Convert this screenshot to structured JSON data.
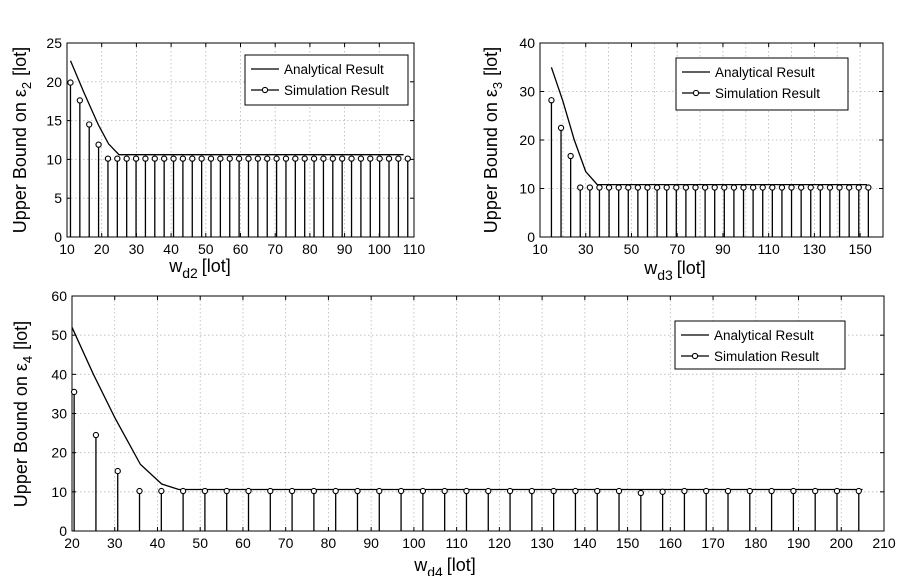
{
  "chart_data": [
    {
      "type": "line",
      "xlabel": "w",
      "xlabel_sub": "d2",
      "xlabel_unit": "[lot]",
      "ylabel": "Upper Bound on ε",
      "ylabel_sub": "2",
      "ylabel_unit": "[lot]",
      "xlim": [
        10,
        110
      ],
      "ylim": [
        0,
        25
      ],
      "xticks": [
        10,
        20,
        30,
        40,
        50,
        60,
        70,
        80,
        90,
        100,
        110
      ],
      "yticks": [
        0,
        5,
        10,
        15,
        20,
        25
      ],
      "grid": true,
      "legend_position": "top-right",
      "series": [
        {
          "name": "Analytical Result",
          "style": "line",
          "x": [
            11,
            15,
            19,
            22,
            25,
            107
          ],
          "y": [
            22.7,
            18.5,
            14.5,
            12.0,
            10.6,
            10.6
          ]
        },
        {
          "name": "Simulation Result",
          "style": "stem",
          "x": [
            11,
            13.7,
            16.4,
            19.1,
            21.8,
            24.5,
            27.2,
            29.9,
            32.6,
            35.3,
            38,
            40.7,
            43.4,
            46.1,
            48.8,
            51.5,
            54.2,
            56.9,
            59.6,
            62.3,
            65,
            67.7,
            70.4,
            73.1,
            75.8,
            78.5,
            81.2,
            83.9,
            86.6,
            89.3,
            92,
            94.7,
            97.4,
            100.1,
            102.8,
            105.5,
            108.2
          ],
          "y": [
            19.9,
            17.6,
            14.5,
            11.9,
            10.1,
            10.1,
            10.1,
            10.1,
            10.1,
            10.1,
            10.1,
            10.1,
            10.1,
            10.1,
            10.1,
            10.1,
            10.1,
            10.1,
            10.1,
            10.1,
            10.1,
            10.1,
            10.1,
            10.1,
            10.1,
            10.1,
            10.1,
            10.1,
            10.1,
            10.1,
            10.1,
            10.1,
            10.1,
            10.1,
            10.1,
            10.1,
            10.1
          ]
        }
      ]
    },
    {
      "type": "line",
      "xlabel": "w",
      "xlabel_sub": "d3",
      "xlabel_unit": "[lot]",
      "ylabel": "Upper Bound on ε",
      "ylabel_sub": "3",
      "ylabel_unit": "[lot]",
      "xlim": [
        10,
        160
      ],
      "ylim": [
        0,
        40
      ],
      "xticks": [
        10,
        30,
        50,
        70,
        90,
        110,
        130,
        150
      ],
      "xticks_minor": [
        20,
        40,
        60,
        80,
        100,
        120,
        140,
        160
      ],
      "yticks": [
        0,
        10,
        20,
        30,
        40
      ],
      "grid": true,
      "legend_position": "top-right",
      "series": [
        {
          "name": "Analytical Result",
          "style": "line",
          "x": [
            15,
            20,
            25,
            30,
            35,
            153
          ],
          "y": [
            35,
            28,
            20,
            13.5,
            10.8,
            10.8
          ]
        },
        {
          "name": "Simulation Result",
          "style": "stem",
          "x": [
            15,
            19.2,
            23.4,
            27.6,
            31.8,
            36,
            40.2,
            44.4,
            48.6,
            52.8,
            57,
            61.2,
            65.4,
            69.6,
            73.8,
            78,
            82.2,
            86.4,
            90.6,
            94.8,
            99,
            103.2,
            107.4,
            111.6,
            115.8,
            120,
            124.2,
            128.4,
            132.6,
            136.8,
            141,
            145.2,
            149.4,
            153.6
          ],
          "y": [
            28.2,
            22.5,
            16.7,
            10.2,
            10.2,
            10.2,
            10.2,
            10.2,
            10.2,
            10.2,
            10.2,
            10.2,
            10.2,
            10.2,
            10.2,
            10.2,
            10.2,
            10.2,
            10.2,
            10.2,
            10.2,
            10.2,
            10.2,
            10.2,
            10.2,
            10.2,
            10.2,
            10.2,
            10.2,
            10.2,
            10.2,
            10.2,
            10.2,
            10.2
          ]
        }
      ]
    },
    {
      "type": "line",
      "xlabel": "w",
      "xlabel_sub": "d4",
      "xlabel_unit": "[lot]",
      "ylabel": "Upper Bound on ε",
      "ylabel_sub": "4",
      "ylabel_unit": "[lot]",
      "xlim": [
        20,
        210
      ],
      "ylim": [
        0,
        60
      ],
      "xticks": [
        20,
        30,
        40,
        50,
        60,
        70,
        80,
        90,
        100,
        110,
        120,
        130,
        140,
        150,
        160,
        170,
        180,
        190,
        200,
        210
      ],
      "yticks": [
        0,
        10,
        20,
        30,
        40,
        50,
        60
      ],
      "grid": true,
      "legend_position": "top-right",
      "series": [
        {
          "name": "Analytical Result",
          "style": "line",
          "x": [
            20,
            25,
            30,
            36,
            41,
            45,
            205
          ],
          "y": [
            52,
            40,
            29,
            17,
            12,
            10.6,
            10.6
          ]
        },
        {
          "name": "Simulation Result",
          "style": "stem",
          "x": [
            20.5,
            25.6,
            30.7,
            35.8,
            40.9,
            46,
            51.1,
            56.2,
            61.3,
            66.4,
            71.5,
            76.6,
            81.7,
            86.8,
            91.9,
            97,
            102.1,
            107.2,
            112.3,
            117.4,
            122.5,
            127.6,
            132.7,
            137.8,
            142.9,
            148,
            153.1,
            158.2,
            163.3,
            168.4,
            173.5,
            178.6,
            183.7,
            188.8,
            193.9,
            199,
            204.1
          ],
          "y": [
            35.5,
            24.5,
            15.3,
            10.2,
            10.2,
            10.2,
            10.2,
            10.2,
            10.2,
            10.2,
            10.2,
            10.2,
            10.2,
            10.2,
            10.2,
            10.2,
            10.2,
            10.2,
            10.2,
            10.2,
            10.2,
            10.2,
            10.2,
            10.2,
            10.2,
            10.2,
            9.7,
            10.0,
            10.2,
            10.2,
            10.2,
            10.2,
            10.2,
            10.2,
            10.2,
            10.2,
            10.2
          ]
        }
      ]
    }
  ]
}
